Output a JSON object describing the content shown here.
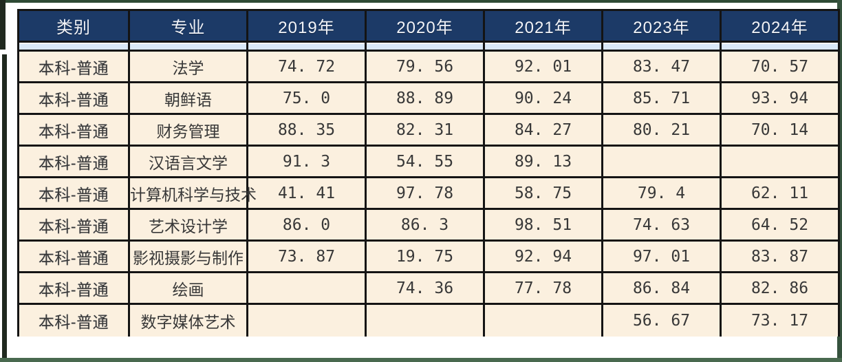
{
  "table": {
    "columns": [
      "类别",
      "专业",
      "2019年",
      "2020年",
      "2021年",
      "2023年",
      "2024年"
    ],
    "rows": [
      {
        "category": "本科-普通",
        "major": "法学",
        "values": [
          "74. 72",
          "79. 56",
          "92. 01",
          "83. 47",
          "70. 57"
        ]
      },
      {
        "category": "本科-普通",
        "major": "朝鲜语",
        "values": [
          "75. 0",
          "88. 89",
          "90. 24",
          "85. 71",
          "93. 94"
        ]
      },
      {
        "category": "本科-普通",
        "major": "财务管理",
        "values": [
          "88. 35",
          "82. 31",
          "84. 27",
          "80. 21",
          "70. 14"
        ]
      },
      {
        "category": "本科-普通",
        "major": "汉语言文学",
        "values": [
          "91. 3",
          "54. 55",
          "89. 13",
          "",
          ""
        ]
      },
      {
        "category": "本科-普通",
        "major": "计算机科学与技术",
        "values": [
          "41. 41",
          "97. 78",
          "58. 75",
          "79. 4",
          "62. 11"
        ]
      },
      {
        "category": "本科-普通",
        "major": "艺术设计学",
        "values": [
          "86. 0",
          "86. 3",
          "98. 51",
          "74. 63",
          "64. 52"
        ]
      },
      {
        "category": "本科-普通",
        "major": "影视摄影与制作",
        "values": [
          "73. 87",
          "19. 75",
          "92. 94",
          "97. 01",
          "83. 87"
        ]
      },
      {
        "category": "本科-普通",
        "major": "绘画",
        "values": [
          "",
          "74. 36",
          "77. 78",
          "86. 84",
          "82. 86"
        ]
      },
      {
        "category": "本科-普通",
        "major": "数字媒体艺术",
        "values": [
          "",
          "",
          "",
          "56. 67",
          "73. 17"
        ]
      }
    ]
  },
  "colors": {
    "header_bg": "#1c3a67",
    "header_text": "#f2f4f9",
    "row_bg": "#fbf0df",
    "strip_bg": "#d9e8f8",
    "category_text": "#23406e",
    "value_text": "#383838",
    "grid_border": "#141414",
    "frame_green": "#49694f"
  }
}
